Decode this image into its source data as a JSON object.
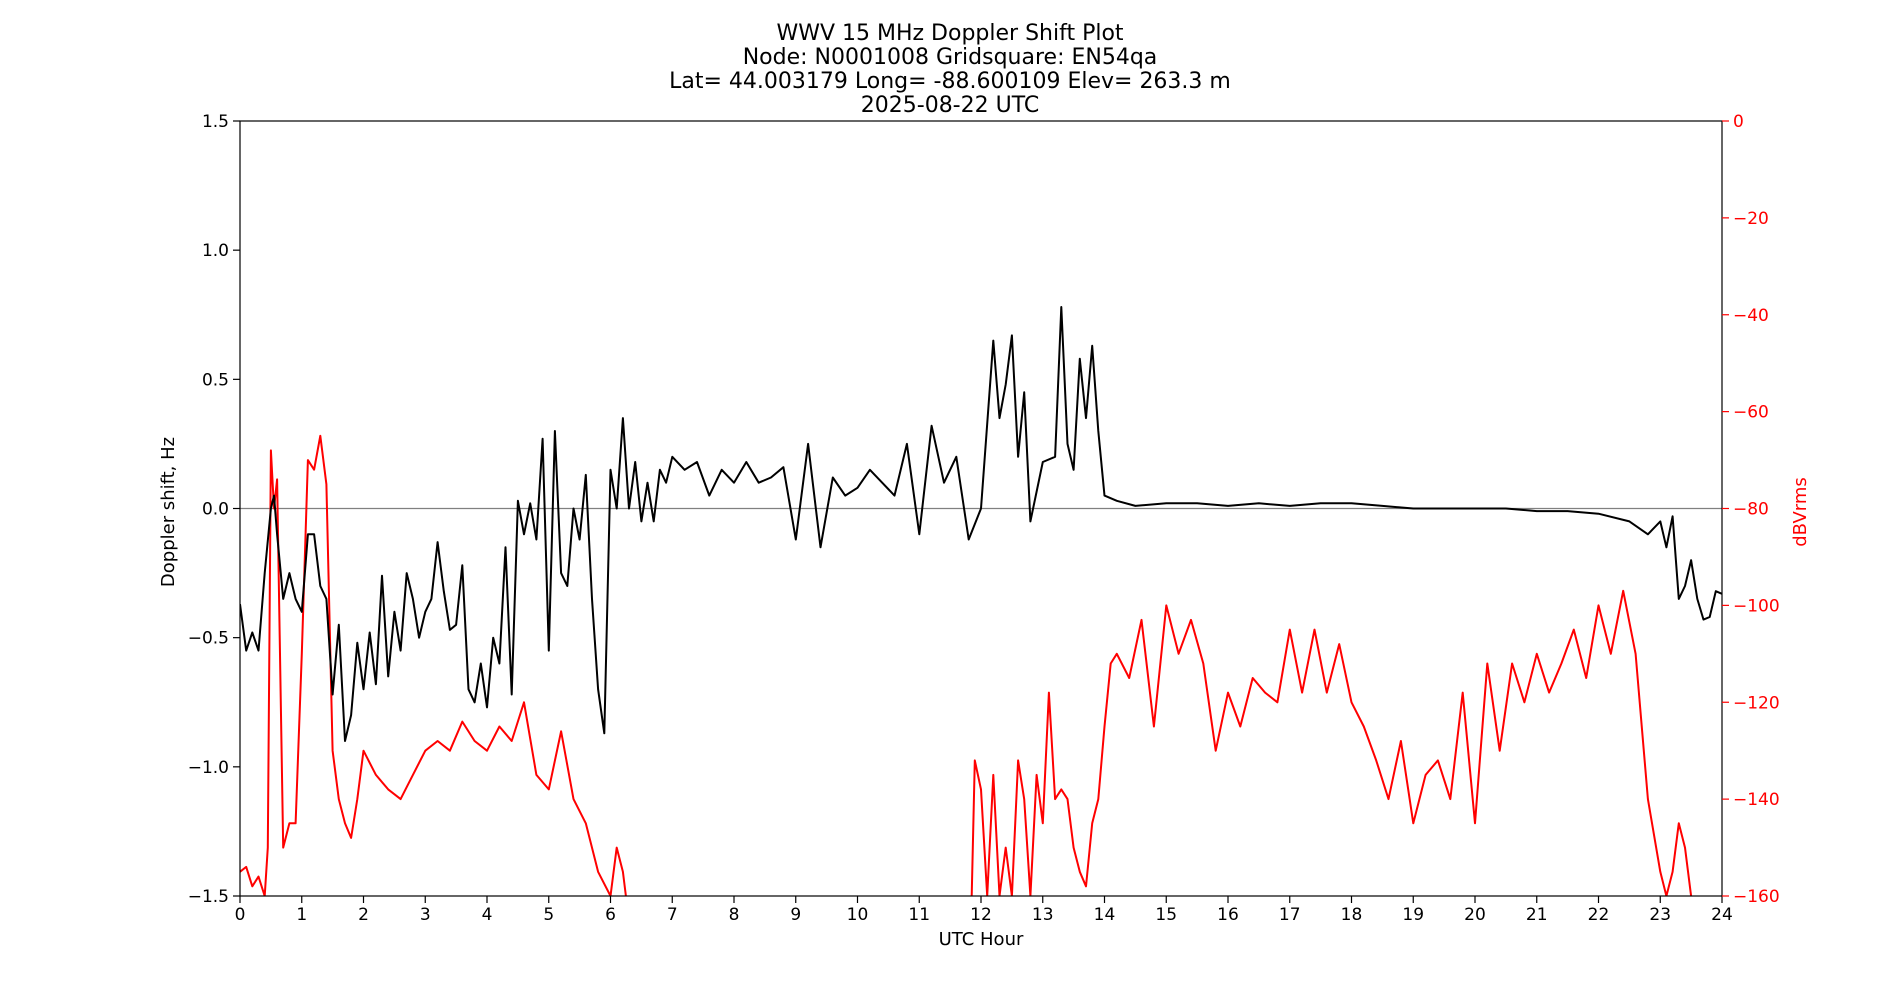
{
  "chart_data": {
    "type": "line",
    "title": {
      "line1": "WWV 15 MHz Doppler Shift Plot",
      "line2": "Node:  N0001008     Gridsquare:  EN54qa",
      "line3": "Lat= 44.003179    Long= -88.600109    Elev= 263.3 m",
      "line4": "2025-08-22  UTC"
    },
    "xlabel": "UTC Hour",
    "ylabel_left": "Doppler shift, Hz",
    "ylabel_right": "dBVrms",
    "xlim": [
      0,
      24
    ],
    "ylim_left": [
      -1.5,
      1.5
    ],
    "ylim_right": [
      -160,
      0
    ],
    "x_ticks": [
      "0",
      "1",
      "2",
      "3",
      "4",
      "5",
      "6",
      "7",
      "8",
      "9",
      "10",
      "11",
      "12",
      "13",
      "14",
      "15",
      "16",
      "17",
      "18",
      "19",
      "20",
      "21",
      "22",
      "23",
      "24"
    ],
    "y_left_ticks": [
      "1.5",
      "1.0",
      "0.5",
      "0.0",
      "−0.5",
      "−1.0",
      "−1.5"
    ],
    "y_right_ticks": [
      "0",
      "−20",
      "−40",
      "−60",
      "−80",
      "−100",
      "−120",
      "−140",
      "−160"
    ],
    "zero_line": 0,
    "colors": {
      "doppler": "#000000",
      "power": "#ff0000",
      "zero_line": "#808080"
    },
    "series": [
      {
        "axis": "left",
        "x": [
          0,
          0.1,
          0.2,
          0.3,
          0.4,
          0.5,
          0.55,
          0.6,
          0.7,
          0.8,
          0.9,
          1.0,
          1.1,
          1.2,
          1.3,
          1.4,
          1.5,
          1.6,
          1.7,
          1.8,
          1.9,
          2.0,
          2.1,
          2.2,
          2.3,
          2.4,
          2.5,
          2.6,
          2.7,
          2.8,
          2.9,
          3.0,
          3.1,
          3.2,
          3.3,
          3.4,
          3.5,
          3.6,
          3.7,
          3.8,
          3.9,
          4.0,
          4.1,
          4.2,
          4.3,
          4.4,
          4.5,
          4.6,
          4.7,
          4.8,
          4.9,
          5.0,
          5.1,
          5.2,
          5.3,
          5.4,
          5.5,
          5.6,
          5.7,
          5.8,
          5.9,
          6.0,
          6.1,
          6.2,
          6.3,
          6.4,
          6.5,
          6.6,
          6.7,
          6.8,
          6.9,
          7.0,
          7.2,
          7.4,
          7.6,
          7.8,
          8.0,
          8.2,
          8.4,
          8.6,
          8.8,
          9.0,
          9.2,
          9.4,
          9.6,
          9.8,
          10.0,
          10.2,
          10.4,
          10.6,
          10.8,
          11.0,
          11.2,
          11.4,
          11.6,
          11.8,
          12.0,
          12.2,
          12.3,
          12.4,
          12.5,
          12.6,
          12.7,
          12.8,
          13.0,
          13.2,
          13.3,
          13.4,
          13.5,
          13.6,
          13.7,
          13.8,
          13.9,
          14.0,
          14.2,
          14.5,
          15.0,
          15.5,
          16.0,
          16.5,
          17.0,
          17.5,
          18.0,
          18.5,
          19.0,
          19.5,
          20.0,
          20.5,
          21.0,
          21.5,
          22.0,
          22.5,
          22.8,
          23.0,
          23.1,
          23.2,
          23.3,
          23.4,
          23.5,
          23.6,
          23.7,
          23.8,
          23.9,
          24.0
        ],
        "values": [
          -0.37,
          -0.55,
          -0.48,
          -0.55,
          -0.25,
          0.0,
          0.05,
          -0.1,
          -0.35,
          -0.25,
          -0.35,
          -0.4,
          -0.1,
          -0.1,
          -0.3,
          -0.35,
          -0.72,
          -0.45,
          -0.9,
          -0.8,
          -0.52,
          -0.7,
          -0.48,
          -0.68,
          -0.26,
          -0.65,
          -0.4,
          -0.55,
          -0.25,
          -0.35,
          -0.5,
          -0.4,
          -0.35,
          -0.13,
          -0.32,
          -0.47,
          -0.45,
          -0.22,
          -0.7,
          -0.75,
          -0.6,
          -0.77,
          -0.5,
          -0.6,
          -0.15,
          -0.72,
          0.03,
          -0.1,
          0.02,
          -0.12,
          0.27,
          -0.55,
          0.3,
          -0.25,
          -0.3,
          0.0,
          -0.12,
          0.13,
          -0.35,
          -0.7,
          -0.87,
          0.15,
          0.0,
          0.35,
          0.0,
          0.18,
          -0.05,
          0.1,
          -0.05,
          0.15,
          0.1,
          0.2,
          0.15,
          0.18,
          0.05,
          0.15,
          0.1,
          0.18,
          0.1,
          0.12,
          0.16,
          -0.12,
          0.25,
          -0.15,
          0.12,
          0.05,
          0.08,
          0.15,
          0.1,
          0.05,
          0.25,
          -0.1,
          0.32,
          0.1,
          0.2,
          -0.12,
          0.0,
          0.65,
          0.35,
          0.48,
          0.67,
          0.2,
          0.45,
          -0.05,
          0.18,
          0.2,
          0.78,
          0.25,
          0.15,
          0.58,
          0.35,
          0.63,
          0.3,
          0.05,
          0.03,
          0.01,
          0.02,
          0.02,
          0.01,
          0.02,
          0.01,
          0.02,
          0.02,
          0.01,
          0.0,
          0.0,
          0.0,
          0.0,
          -0.01,
          -0.01,
          -0.02,
          -0.05,
          -0.1,
          -0.05,
          -0.15,
          -0.03,
          -0.35,
          -0.3,
          -0.2,
          -0.35,
          -0.43,
          -0.42,
          -0.32,
          -0.33
        ]
      },
      {
        "axis": "right",
        "segments": [
          {
            "x": [
              0,
              0.1,
              0.2,
              0.3,
              0.4,
              0.45,
              0.5,
              0.55,
              0.6,
              0.7,
              0.8,
              0.9,
              1.0,
              1.1,
              1.2,
              1.3,
              1.4,
              1.5,
              1.6,
              1.7,
              1.8,
              1.9,
              2.0,
              2.2,
              2.4,
              2.6,
              2.8,
              3.0,
              3.2,
              3.4,
              3.6,
              3.8,
              4.0,
              4.2,
              4.4,
              4.6,
              4.8,
              5.0,
              5.2,
              5.4,
              5.6,
              5.8,
              6.0,
              6.1,
              6.2,
              6.25
            ],
            "values": [
              -155,
              -154,
              -158,
              -156,
              -160,
              -150,
              -68,
              -80,
              -74,
              -150,
              -145,
              -145,
              -110,
              -70,
              -72,
              -65,
              -75,
              -130,
              -140,
              -145,
              -148,
              -140,
              -130,
              -135,
              -138,
              -140,
              -135,
              -130,
              -128,
              -130,
              -124,
              -128,
              -130,
              -125,
              -128,
              -120,
              -135,
              -138,
              -126,
              -140,
              -145,
              -155,
              -160,
              -150,
              -155,
              -160
            ]
          },
          {
            "x": [
              11.85,
              11.9,
              12.0,
              12.1,
              12.2,
              12.3,
              12.4,
              12.5,
              12.6,
              12.7,
              12.8,
              12.9,
              13.0,
              13.1,
              13.2,
              13.3,
              13.4,
              13.5,
              13.6,
              13.7,
              13.8,
              13.9,
              14.0,
              14.1,
              14.2,
              14.4,
              14.6,
              14.8,
              15.0,
              15.2,
              15.4,
              15.6,
              15.8,
              16.0,
              16.2,
              16.4,
              16.6,
              16.8,
              17.0,
              17.2,
              17.4,
              17.6,
              17.8,
              18.0,
              18.2,
              18.4,
              18.6,
              18.8,
              19.0,
              19.2,
              19.4,
              19.6,
              19.8,
              20.0,
              20.2,
              20.4,
              20.6,
              20.8,
              21.0,
              21.2,
              21.4,
              21.6,
              21.8,
              22.0,
              22.2,
              22.4,
              22.6,
              22.8,
              23.0,
              23.1,
              23.2,
              23.3,
              23.4,
              23.5
            ],
            "values": [
              -160,
              -132,
              -138,
              -160,
              -135,
              -160,
              -150,
              -160,
              -132,
              -140,
              -160,
              -135,
              -145,
              -118,
              -140,
              -138,
              -140,
              -150,
              -155,
              -158,
              -145,
              -140,
              -125,
              -112,
              -110,
              -115,
              -103,
              -125,
              -100,
              -110,
              -103,
              -112,
              -130,
              -118,
              -125,
              -115,
              -118,
              -120,
              -105,
              -118,
              -105,
              -118,
              -108,
              -120,
              -125,
              -132,
              -140,
              -128,
              -145,
              -135,
              -132,
              -140,
              -118,
              -145,
              -112,
              -130,
              -112,
              -120,
              -110,
              -118,
              -112,
              -105,
              -115,
              -100,
              -110,
              -97,
              -110,
              -140,
              -155,
              -160,
              -155,
              -145,
              -150,
              -160
            ]
          }
        ]
      }
    ]
  }
}
